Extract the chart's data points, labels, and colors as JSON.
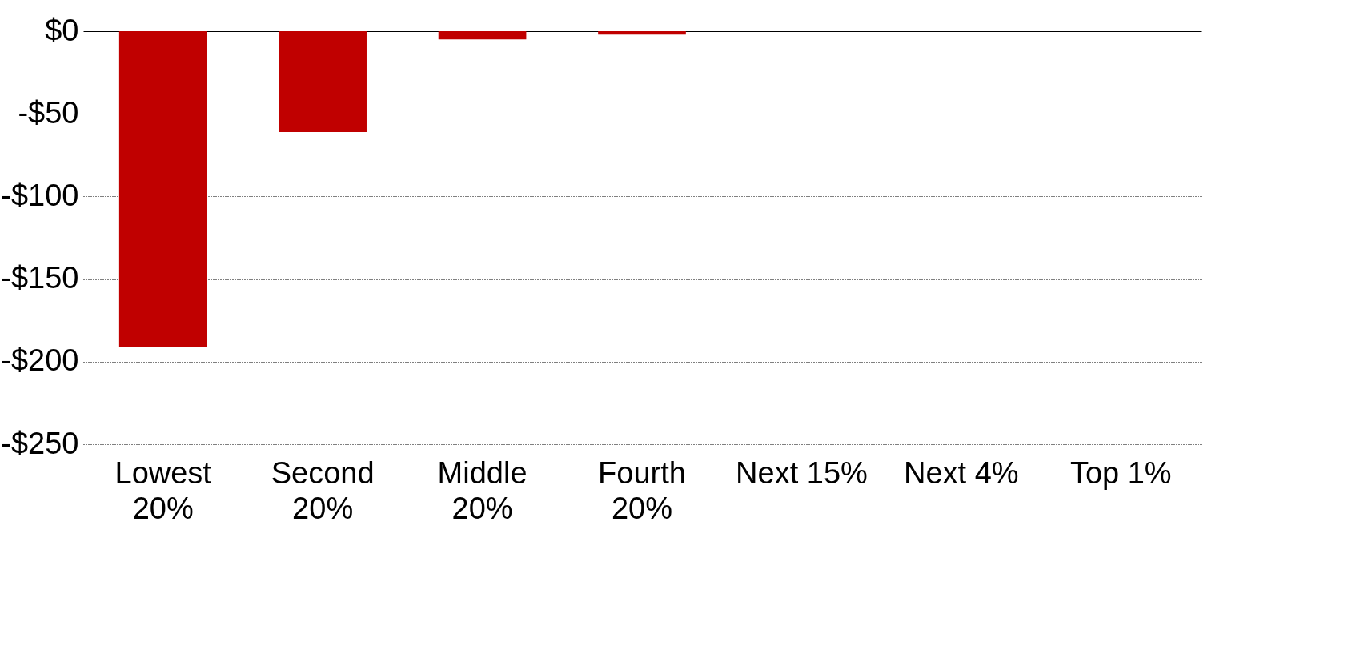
{
  "chart_data": {
    "type": "bar",
    "categories": [
      "Lowest\n20%",
      "Second\n20%",
      "Middle\n20%",
      "Fourth\n20%",
      "Next 15%",
      "Next 4%",
      "Top 1%"
    ],
    "values": [
      -191,
      -61,
      -5,
      -2,
      0,
      0,
      0
    ],
    "color": "#c00000",
    "ylim": [
      -250,
      0
    ],
    "yticks": [
      {
        "value": 0,
        "label": "$0"
      },
      {
        "value": -50,
        "label": "-$50"
      },
      {
        "value": -100,
        "label": "-$100"
      },
      {
        "value": -150,
        "label": "-$150"
      },
      {
        "value": -200,
        "label": "-$200"
      },
      {
        "value": -250,
        "label": "-$250"
      }
    ],
    "grid": "y"
  }
}
